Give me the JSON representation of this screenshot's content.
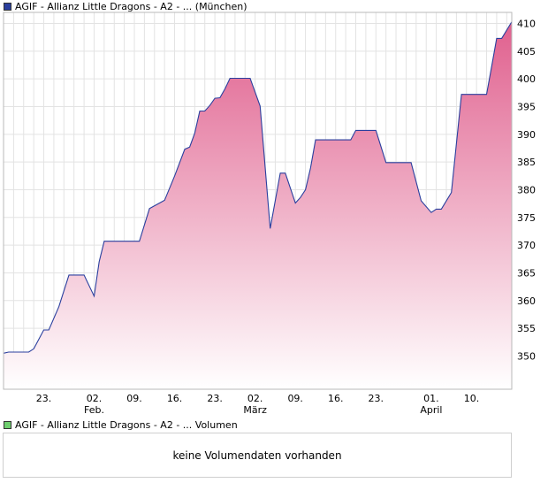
{
  "price_legend": {
    "label": "AGIF - Allianz Little Dragons - A2 - ... (München)",
    "color": "#2a3f9e"
  },
  "volume_legend": {
    "label": "AGIF - Allianz Little Dragons - A2 - ... Volumen",
    "color": "#6fcf6f"
  },
  "volume_panel": {
    "message": "keine Volumendaten vorhanden"
  },
  "chart_data": {
    "type": "area",
    "title": "AGIF - Allianz Little Dragons - A2 - ... (München)",
    "xlabel": "",
    "ylabel": "",
    "x_tick_labels": [
      {
        "day": 8,
        "label": "23.",
        "sub": ""
      },
      {
        "day": 18,
        "label": "02.",
        "sub": "Feb."
      },
      {
        "day": 26,
        "label": "09.",
        "sub": ""
      },
      {
        "day": 34,
        "label": "16.",
        "sub": ""
      },
      {
        "day": 42,
        "label": "23.",
        "sub": ""
      },
      {
        "day": 50,
        "label": "02.",
        "sub": "März"
      },
      {
        "day": 58,
        "label": "09.",
        "sub": ""
      },
      {
        "day": 66,
        "label": "16.",
        "sub": ""
      },
      {
        "day": 74,
        "label": "23.",
        "sub": ""
      },
      {
        "day": 85,
        "label": "01.",
        "sub": "April"
      },
      {
        "day": 93,
        "label": "10.",
        "sub": ""
      }
    ],
    "yticks": [
      350,
      355,
      360,
      365,
      370,
      375,
      380,
      385,
      390,
      395,
      400,
      405,
      410
    ],
    "ylim": [
      344,
      412
    ],
    "xlim": [
      0,
      101
    ],
    "grid": true,
    "line_color": "#2a3f9e",
    "fill_top_color": "#e0608e",
    "fill_bottom_color": "#ffffff",
    "series": [
      {
        "values": [
          [
            0,
            350.5
          ],
          [
            1,
            350.7
          ],
          [
            5,
            350.7
          ],
          [
            6,
            351.3
          ],
          [
            8,
            354.7
          ],
          [
            9,
            354.7
          ],
          [
            11,
            358.9
          ],
          [
            13,
            364.6
          ],
          [
            16,
            364.6
          ],
          [
            18,
            360.8
          ],
          [
            19,
            367.0
          ],
          [
            20,
            370.7
          ],
          [
            27,
            370.7
          ],
          [
            29,
            376.6
          ],
          [
            31,
            377.6
          ],
          [
            32,
            378.1
          ],
          [
            34,
            382.5
          ],
          [
            36,
            387.3
          ],
          [
            37,
            387.7
          ],
          [
            38,
            390.2
          ],
          [
            39,
            394.2
          ],
          [
            40,
            394.2
          ],
          [
            41,
            395.2
          ],
          [
            42,
            396.5
          ],
          [
            43,
            396.6
          ],
          [
            44,
            398.2
          ],
          [
            45,
            400.1
          ],
          [
            49,
            400.1
          ],
          [
            51,
            395.1
          ],
          [
            53,
            373.0
          ],
          [
            55,
            383.0
          ],
          [
            56,
            383.0
          ],
          [
            58,
            377.6
          ],
          [
            59,
            378.6
          ],
          [
            60,
            380.0
          ],
          [
            61,
            383.9
          ],
          [
            62,
            389.0
          ],
          [
            67,
            389.0
          ],
          [
            69,
            389.0
          ],
          [
            70,
            390.7
          ],
          [
            74,
            390.7
          ],
          [
            76,
            384.9
          ],
          [
            81,
            384.9
          ],
          [
            83,
            378.0
          ],
          [
            85,
            375.9
          ],
          [
            86,
            376.5
          ],
          [
            87,
            376.5
          ],
          [
            89,
            379.5
          ],
          [
            91,
            397.2
          ],
          [
            96,
            397.2
          ],
          [
            97,
            402.2
          ],
          [
            98,
            407.3
          ],
          [
            99,
            407.3
          ],
          [
            101,
            410.3
          ]
        ]
      }
    ]
  }
}
